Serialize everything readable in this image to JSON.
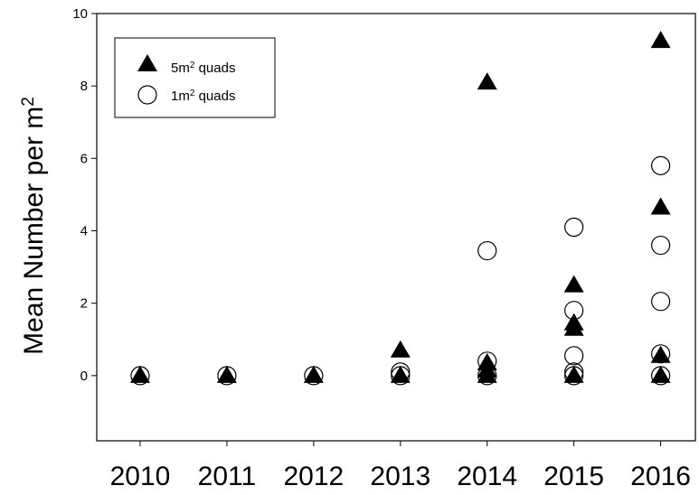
{
  "chart_data": {
    "type": "scatter",
    "title": "",
    "xlabel": "",
    "ylabel": "Mean Number per m",
    "ylabel_sup": "2",
    "xlim": [
      2009.5,
      2016.4
    ],
    "ylim": [
      -1.8,
      10
    ],
    "categories": [
      "2010",
      "2011",
      "2012",
      "2013",
      "2014",
      "2015",
      "2016"
    ],
    "x_ticks": [
      2010,
      2011,
      2012,
      2013,
      2014,
      2015,
      2016
    ],
    "y_ticks": [
      0,
      2,
      4,
      6,
      8,
      10
    ],
    "grid": false,
    "legend_position": "top-left",
    "series": [
      {
        "name": "5m quads",
        "name_base": "5m",
        "name_sup": "2",
        "name_tail": " quads",
        "marker": "filled-triangle",
        "color": "#000000",
        "points": [
          {
            "x": 2010,
            "y": 0
          },
          {
            "x": 2011,
            "y": 0
          },
          {
            "x": 2012,
            "y": 0
          },
          {
            "x": 2013,
            "y": 0.7
          },
          {
            "x": 2013,
            "y": 0
          },
          {
            "x": 2014,
            "y": 8.1
          },
          {
            "x": 2014,
            "y": 0.35
          },
          {
            "x": 2014,
            "y": 0.15
          },
          {
            "x": 2014,
            "y": 0
          },
          {
            "x": 2015,
            "y": 2.5
          },
          {
            "x": 2015,
            "y": 1.45
          },
          {
            "x": 2015,
            "y": 1.3
          },
          {
            "x": 2015,
            "y": 0
          },
          {
            "x": 2016,
            "y": 9.25
          },
          {
            "x": 2016,
            "y": 4.65
          },
          {
            "x": 2016,
            "y": 0.55
          },
          {
            "x": 2016,
            "y": 0
          }
        ]
      },
      {
        "name": "1m quads",
        "name_base": "1m",
        "name_sup": "2",
        "name_tail": " quads",
        "marker": "open-circle",
        "color": "#000000",
        "points": [
          {
            "x": 2010,
            "y": 0
          },
          {
            "x": 2011,
            "y": 0
          },
          {
            "x": 2012,
            "y": 0
          },
          {
            "x": 2013,
            "y": 0.1
          },
          {
            "x": 2013,
            "y": 0
          },
          {
            "x": 2014,
            "y": 3.45
          },
          {
            "x": 2014,
            "y": 0.4
          },
          {
            "x": 2014,
            "y": 0
          },
          {
            "x": 2015,
            "y": 4.1
          },
          {
            "x": 2015,
            "y": 1.8
          },
          {
            "x": 2015,
            "y": 0.55
          },
          {
            "x": 2015,
            "y": 0.1
          },
          {
            "x": 2015,
            "y": 0
          },
          {
            "x": 2016,
            "y": 5.8
          },
          {
            "x": 2016,
            "y": 3.6
          },
          {
            "x": 2016,
            "y": 2.05
          },
          {
            "x": 2016,
            "y": 0.6
          },
          {
            "x": 2016,
            "y": 0
          }
        ]
      }
    ]
  }
}
